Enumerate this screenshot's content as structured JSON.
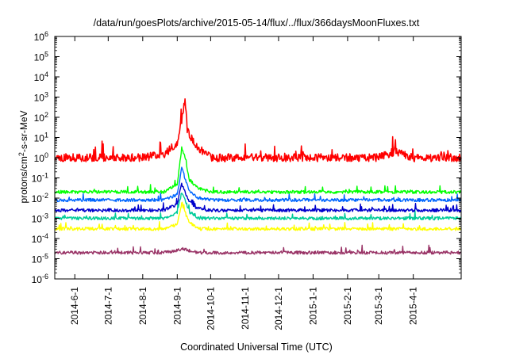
{
  "chart_data": {
    "type": "line",
    "title": "/data/run/goesPlots/archive/2015-05-14/flux/../flux/366daysMoonFluxes.txt",
    "xlabel": "Coordinated Universal Time (UTC)",
    "ylabel": {
      "base": "protons/cm",
      "sup": "2",
      "rest": "-s-sr-MeV"
    },
    "x_range": [
      "2014-05-14",
      "2015-05-14"
    ],
    "ylim": [
      1e-06,
      1000000.0
    ],
    "y_scale": "log",
    "grid": false,
    "x_ticks": [
      {
        "date": "2014-06-01",
        "label": "2014-6-1"
      },
      {
        "date": "2014-07-01",
        "label": "2014-7-1"
      },
      {
        "date": "2014-08-01",
        "label": "2014-8-1"
      },
      {
        "date": "2014-09-01",
        "label": "2014-9-1"
      },
      {
        "date": "2014-10-01",
        "label": "2014-10-1"
      },
      {
        "date": "2014-11-01",
        "label": "2014-11-1"
      },
      {
        "date": "2014-12-01",
        "label": "2014-12-1"
      },
      {
        "date": "2015-01-01",
        "label": "2015-1-1"
      },
      {
        "date": "2015-02-01",
        "label": "2015-2-1"
      },
      {
        "date": "2015-03-01",
        "label": "2015-3-1"
      },
      {
        "date": "2015-04-01",
        "label": "2015-4-1"
      }
    ],
    "y_ticks": [
      {
        "exp": -6,
        "label": "10",
        "sup": "-6"
      },
      {
        "exp": -5,
        "label": "10",
        "sup": "-5"
      },
      {
        "exp": -4,
        "label": "10",
        "sup": "-4"
      },
      {
        "exp": -3,
        "label": "10",
        "sup": "-3"
      },
      {
        "exp": -2,
        "label": "10",
        "sup": "-2"
      },
      {
        "exp": -1,
        "label": "10",
        "sup": "-1"
      },
      {
        "exp": 0,
        "label": "10",
        "sup": "0"
      },
      {
        "exp": 1,
        "label": "10",
        "sup": "1"
      },
      {
        "exp": 2,
        "label": "10",
        "sup": "2"
      },
      {
        "exp": 3,
        "label": "10",
        "sup": "3"
      },
      {
        "exp": 4,
        "label": "10",
        "sup": "4"
      },
      {
        "exp": 5,
        "label": "10",
        "sup": "5"
      },
      {
        "exp": 6,
        "label": "10",
        "sup": "6"
      }
    ],
    "series": [
      {
        "color": "#993366",
        "x": [
          "2014-05-14",
          "2014-06-01",
          "2014-06-15",
          "2014-07-01",
          "2014-07-15",
          "2014-08-01",
          "2014-08-20",
          "2014-09-01",
          "2014-09-05",
          "2014-09-08",
          "2014-09-12",
          "2014-09-20",
          "2014-10-01",
          "2014-10-15",
          "2014-11-01",
          "2014-11-15",
          "2014-12-01",
          "2014-12-15",
          "2015-01-01",
          "2015-01-15",
          "2015-02-01",
          "2015-02-15",
          "2015-03-01",
          "2015-03-15",
          "2015-04-01",
          "2015-04-15",
          "2015-05-01",
          "2015-05-14"
        ],
        "y": [
          2e-05,
          2e-05,
          2e-05,
          2e-05,
          2e-05,
          2e-05,
          2e-05,
          2.5e-05,
          3e-05,
          3e-05,
          2.5e-05,
          2e-05,
          2e-05,
          2e-05,
          2e-05,
          2e-05,
          2e-05,
          2e-05,
          2e-05,
          2e-05,
          2e-05,
          2e-05,
          2e-05,
          2e-05,
          2e-05,
          2e-05,
          2e-05,
          2e-05
        ]
      },
      {
        "color": "#ffff00",
        "x": [
          "2014-05-14",
          "2014-06-01",
          "2014-06-15",
          "2014-07-01",
          "2014-07-15",
          "2014-08-01",
          "2014-08-20",
          "2014-09-01",
          "2014-09-05",
          "2014-09-08",
          "2014-09-12",
          "2014-09-20",
          "2014-10-01",
          "2014-10-15",
          "2014-11-01",
          "2014-11-15",
          "2014-12-01",
          "2014-12-15",
          "2015-01-01",
          "2015-01-15",
          "2015-02-01",
          "2015-02-15",
          "2015-03-01",
          "2015-03-15",
          "2015-04-01",
          "2015-04-15",
          "2015-05-01",
          "2015-05-14"
        ],
        "y": [
          0.0003,
          0.0003,
          0.0003,
          0.0003,
          0.0003,
          0.0003,
          0.0003,
          0.0005,
          0.005,
          0.002,
          0.0006,
          0.0003,
          0.0003,
          0.0003,
          0.0003,
          0.0003,
          0.0003,
          0.0003,
          0.0003,
          0.0003,
          0.0003,
          0.0003,
          0.0003,
          0.0003,
          0.0003,
          0.0003,
          0.0003,
          0.0003
        ]
      },
      {
        "color": "#00cc99",
        "x": [
          "2014-05-14",
          "2014-06-01",
          "2014-06-15",
          "2014-07-01",
          "2014-07-15",
          "2014-08-01",
          "2014-08-20",
          "2014-09-01",
          "2014-09-05",
          "2014-09-08",
          "2014-09-12",
          "2014-09-20",
          "2014-10-01",
          "2014-10-15",
          "2014-11-01",
          "2014-11-15",
          "2014-12-01",
          "2014-12-15",
          "2015-01-01",
          "2015-01-15",
          "2015-02-01",
          "2015-02-15",
          "2015-03-01",
          "2015-03-15",
          "2015-04-01",
          "2015-04-15",
          "2015-05-01",
          "2015-05-14"
        ],
        "y": [
          0.001,
          0.001,
          0.001,
          0.001,
          0.001,
          0.001,
          0.001,
          0.002,
          0.02,
          0.008,
          0.002,
          0.001,
          0.001,
          0.001,
          0.001,
          0.001,
          0.001,
          0.001,
          0.001,
          0.001,
          0.001,
          0.001,
          0.001,
          0.001,
          0.001,
          0.001,
          0.001,
          0.001
        ]
      },
      {
        "color": "#0000cc",
        "x": [
          "2014-05-14",
          "2014-06-01",
          "2014-06-15",
          "2014-07-01",
          "2014-07-15",
          "2014-08-01",
          "2014-08-20",
          "2014-09-01",
          "2014-09-05",
          "2014-09-08",
          "2014-09-12",
          "2014-09-20",
          "2014-10-01",
          "2014-10-15",
          "2014-11-01",
          "2014-11-15",
          "2014-12-01",
          "2014-12-15",
          "2015-01-01",
          "2015-01-15",
          "2015-02-01",
          "2015-02-15",
          "2015-03-01",
          "2015-03-15",
          "2015-04-01",
          "2015-04-15",
          "2015-05-01",
          "2015-05-14"
        ],
        "y": [
          0.0025,
          0.0025,
          0.0025,
          0.0025,
          0.0025,
          0.0025,
          0.0025,
          0.005,
          0.05,
          0.02,
          0.006,
          0.003,
          0.0025,
          0.0025,
          0.0025,
          0.0025,
          0.0025,
          0.0025,
          0.0025,
          0.0025,
          0.0025,
          0.0025,
          0.0025,
          0.0025,
          0.0025,
          0.0025,
          0.0025,
          0.0025
        ]
      },
      {
        "color": "#0066ff",
        "x": [
          "2014-05-14",
          "2014-06-01",
          "2014-06-15",
          "2014-07-01",
          "2014-07-15",
          "2014-08-01",
          "2014-08-20",
          "2014-09-01",
          "2014-09-05",
          "2014-09-08",
          "2014-09-12",
          "2014-09-20",
          "2014-10-01",
          "2014-10-15",
          "2014-11-01",
          "2014-11-15",
          "2014-12-01",
          "2014-12-15",
          "2015-01-01",
          "2015-01-15",
          "2015-02-01",
          "2015-02-15",
          "2015-03-01",
          "2015-03-15",
          "2015-04-01",
          "2015-04-15",
          "2015-05-01",
          "2015-05-14"
        ],
        "y": [
          0.008,
          0.008,
          0.008,
          0.008,
          0.008,
          0.008,
          0.008,
          0.015,
          0.3,
          0.1,
          0.02,
          0.01,
          0.008,
          0.008,
          0.008,
          0.008,
          0.008,
          0.008,
          0.008,
          0.008,
          0.008,
          0.008,
          0.008,
          0.008,
          0.008,
          0.008,
          0.008,
          0.008
        ]
      },
      {
        "color": "#00ff00",
        "x": [
          "2014-05-14",
          "2014-06-01",
          "2014-06-15",
          "2014-07-01",
          "2014-07-15",
          "2014-08-01",
          "2014-08-20",
          "2014-09-01",
          "2014-09-05",
          "2014-09-08",
          "2014-09-12",
          "2014-09-20",
          "2014-10-01",
          "2014-10-15",
          "2014-11-01",
          "2014-11-15",
          "2014-12-01",
          "2014-12-15",
          "2015-01-01",
          "2015-01-15",
          "2015-02-01",
          "2015-02-15",
          "2015-03-01",
          "2015-03-15",
          "2015-04-01",
          "2015-04-15",
          "2015-05-01",
          "2015-05-14"
        ],
        "y": [
          0.02,
          0.02,
          0.02,
          0.02,
          0.02,
          0.02,
          0.02,
          0.05,
          3,
          1,
          0.08,
          0.03,
          0.02,
          0.02,
          0.02,
          0.02,
          0.02,
          0.02,
          0.02,
          0.02,
          0.02,
          0.02,
          0.02,
          0.02,
          0.02,
          0.02,
          0.02,
          0.02
        ]
      },
      {
        "color": "#ff0000",
        "x": [
          "2014-05-14",
          "2014-06-01",
          "2014-06-15",
          "2014-07-01",
          "2014-07-15",
          "2014-08-01",
          "2014-08-20",
          "2014-09-01",
          "2014-09-05",
          "2014-09-08",
          "2014-09-10",
          "2014-09-20",
          "2014-10-01",
          "2014-10-15",
          "2014-11-01",
          "2014-11-15",
          "2014-12-01",
          "2014-12-15",
          "2015-01-01",
          "2015-01-15",
          "2015-02-01",
          "2015-02-15",
          "2015-03-01",
          "2015-03-15",
          "2015-04-01",
          "2015-04-15",
          "2015-05-01",
          "2015-05-14"
        ],
        "y": [
          1,
          1,
          1,
          1,
          1,
          1,
          1.5,
          5,
          60,
          1000,
          20,
          3,
          1,
          1,
          1,
          1,
          1,
          1,
          1,
          1,
          1,
          1,
          1,
          2,
          1,
          1,
          1,
          1
        ]
      }
    ]
  }
}
